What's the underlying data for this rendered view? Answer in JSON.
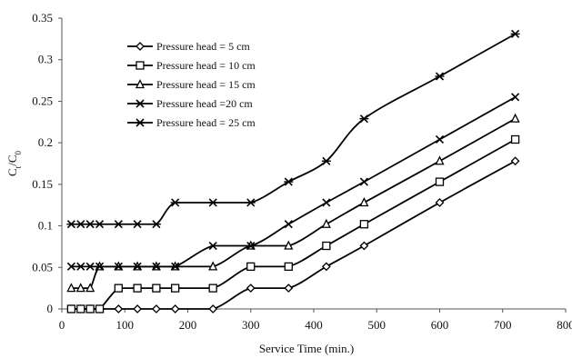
{
  "chart_data": {
    "type": "line",
    "title": "",
    "xlabel": "Service Time (min.)",
    "ylabel_main": "C",
    "ylabel_sub1": "t",
    "ylabel_mid": "/C",
    "ylabel_sub2": "0",
    "xlim": [
      0,
      800
    ],
    "ylim": [
      0,
      0.35
    ],
    "x_ticks": [
      "0",
      "100",
      "200",
      "300",
      "400",
      "500",
      "600",
      "700",
      "800"
    ],
    "y_ticks": [
      "0",
      "0.05",
      "0.1",
      "0.15",
      "0.2",
      "0.25",
      "0.3",
      "0.35"
    ],
    "grid": false,
    "legend_position": "top-left",
    "series": [
      {
        "name": "Pressure head = 5 cm",
        "marker": "diamond",
        "x": [
          15,
          30,
          45,
          60,
          90,
          120,
          150,
          180,
          240,
          300,
          360,
          420,
          480,
          600,
          720
        ],
        "y": [
          0,
          0,
          0,
          0,
          0,
          0,
          0,
          0,
          0,
          0.025,
          0.025,
          0.051,
          0.076,
          0.128,
          0.178
        ]
      },
      {
        "name": "Pressure head = 10 cm",
        "marker": "square",
        "x": [
          15,
          30,
          45,
          60,
          90,
          120,
          150,
          180,
          240,
          300,
          360,
          420,
          480,
          600,
          720
        ],
        "y": [
          0,
          0,
          0,
          0,
          0.025,
          0.025,
          0.025,
          0.025,
          0.025,
          0.051,
          0.051,
          0.076,
          0.102,
          0.153,
          0.204
        ]
      },
      {
        "name": "Pressure head = 15 cm",
        "marker": "triangle",
        "x": [
          15,
          30,
          45,
          60,
          90,
          120,
          150,
          180,
          240,
          300,
          360,
          420,
          480,
          600,
          720
        ],
        "y": [
          0.025,
          0.025,
          0.025,
          0.051,
          0.051,
          0.051,
          0.051,
          0.051,
          0.051,
          0.076,
          0.076,
          0.102,
          0.128,
          0.178,
          0.229
        ]
      },
      {
        "name": "Pressure head =20 cm",
        "marker": "x",
        "x": [
          15,
          30,
          45,
          60,
          90,
          120,
          150,
          180,
          240,
          300,
          360,
          420,
          480,
          600,
          720
        ],
        "y": [
          0.051,
          0.051,
          0.051,
          0.051,
          0.051,
          0.051,
          0.051,
          0.051,
          0.076,
          0.076,
          0.102,
          0.128,
          0.153,
          0.204,
          0.255
        ]
      },
      {
        "name": "Pressure head = 25 cm",
        "marker": "asterisk",
        "x": [
          15,
          30,
          45,
          60,
          90,
          120,
          150,
          180,
          240,
          300,
          360,
          420,
          480,
          600,
          720
        ],
        "y": [
          0.102,
          0.102,
          0.102,
          0.102,
          0.102,
          0.102,
          0.102,
          0.128,
          0.128,
          0.128,
          0.153,
          0.178,
          0.229,
          0.28,
          0.331
        ]
      }
    ]
  }
}
